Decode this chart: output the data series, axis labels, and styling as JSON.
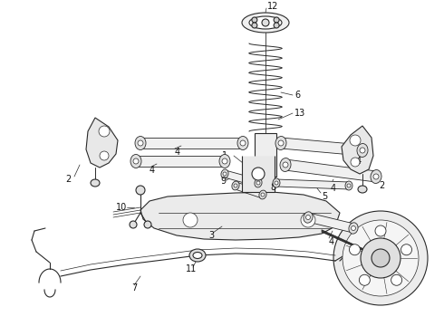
{
  "bg_color": "#ffffff",
  "line_color": "#2a2a2a",
  "text_color": "#111111",
  "figsize": [
    4.9,
    3.6
  ],
  "dpi": 100
}
